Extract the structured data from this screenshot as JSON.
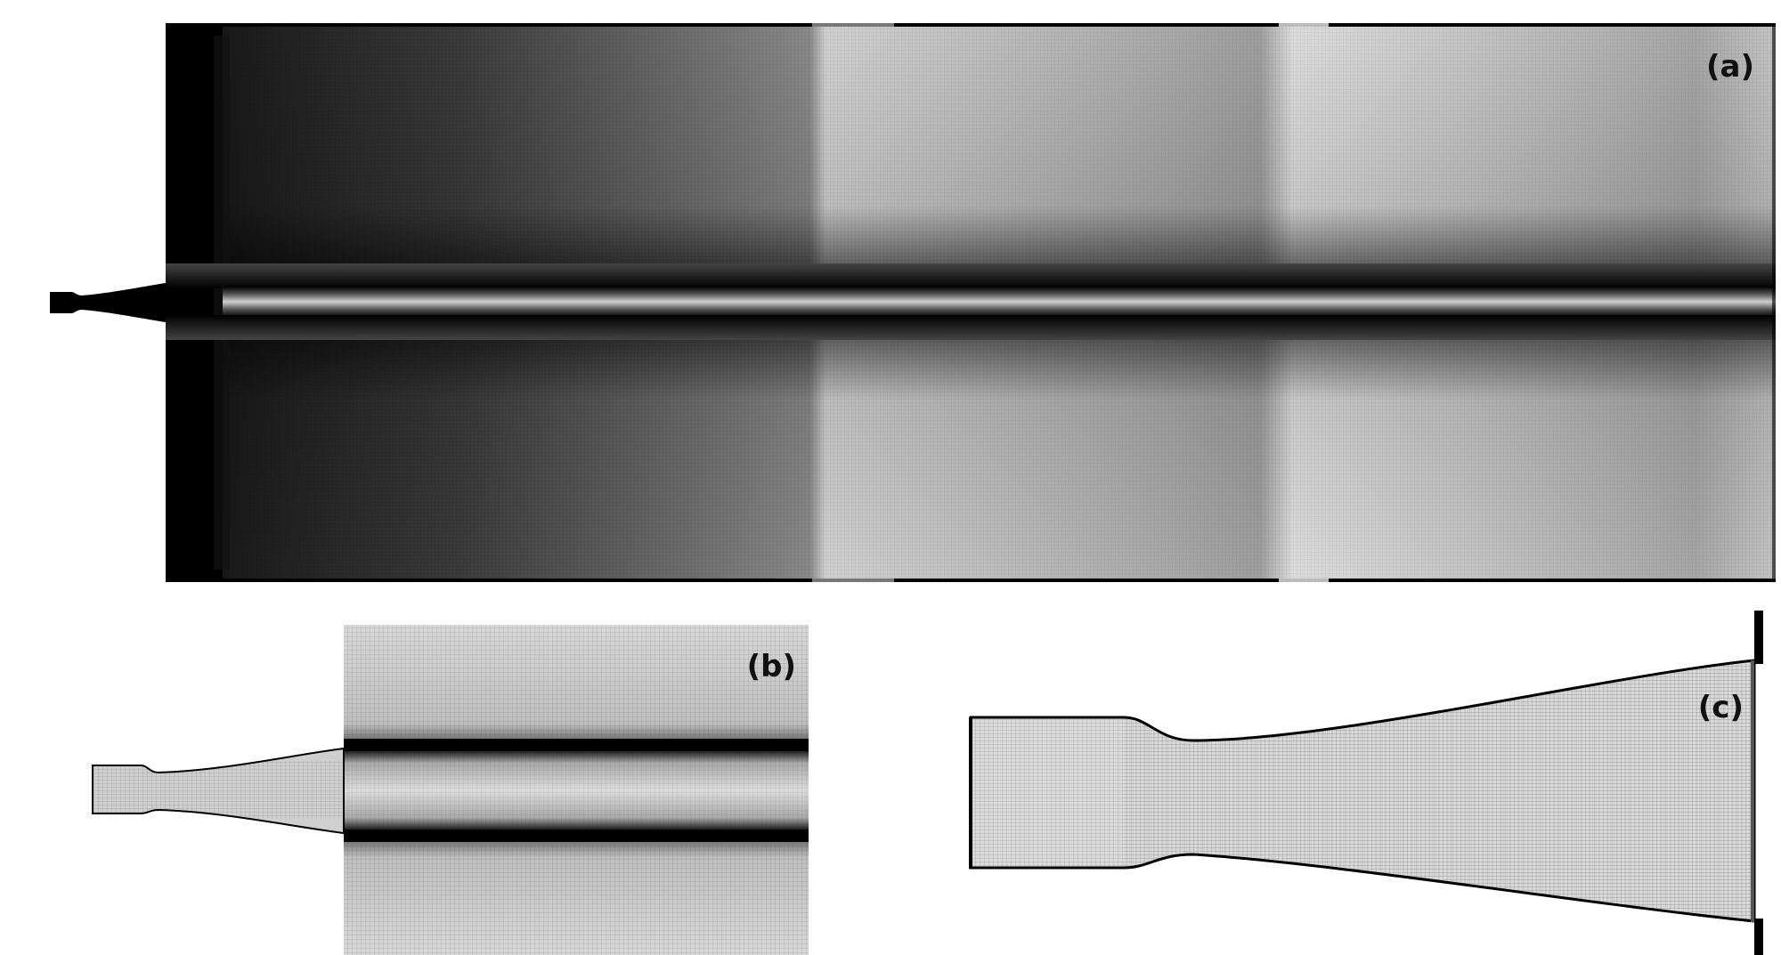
{
  "figure": {
    "panels": [
      {
        "id": "a",
        "label": "(a)"
      },
      {
        "id": "b",
        "label": "(b)"
      },
      {
        "id": "c",
        "label": "(c)"
      }
    ]
  },
  "colors": {
    "background": "#ffffff",
    "mesh_line": "#000000",
    "label_text": "#111111"
  }
}
